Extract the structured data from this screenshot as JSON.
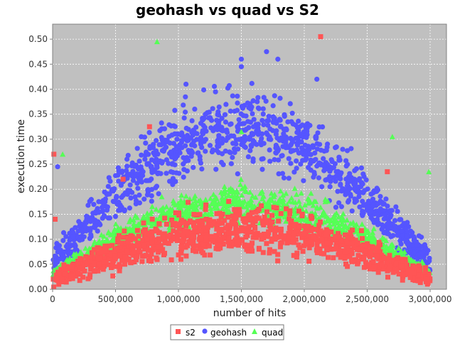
{
  "chart_data": {
    "type": "scatter",
    "title": "geohash vs quad vs S2",
    "xlabel": "number of hits",
    "ylabel": "execution time",
    "xlim": [
      0,
      3130000
    ],
    "ylim": [
      0,
      0.53
    ],
    "x_ticks": [
      0,
      500000,
      1000000,
      1500000,
      2000000,
      2500000,
      3000000
    ],
    "x_tick_labels": [
      "0",
      "500,000",
      "1,000,000",
      "1,500,000",
      "2,000,000",
      "2,500,000",
      "3,000,000"
    ],
    "y_ticks": [
      0.0,
      0.05,
      0.1,
      0.15,
      0.2,
      0.25,
      0.3,
      0.35,
      0.4,
      0.45,
      0.5
    ],
    "y_tick_labels": [
      "0.00",
      "0.05",
      "0.10",
      "0.15",
      "0.20",
      "0.25",
      "0.30",
      "0.35",
      "0.40",
      "0.45",
      "0.50"
    ],
    "grid": true,
    "plot_background": "#c0c0c0",
    "legend_position": "bottom",
    "series": [
      {
        "name": "s2",
        "marker": "square",
        "color": "#ff5555",
        "trend": {
          "base": 0.02,
          "amp": 0.1,
          "spread": 0.045
        },
        "points": [
          [
            10000,
            0.27
          ],
          [
            770000,
            0.325
          ],
          [
            2130000,
            0.505
          ],
          [
            2660000,
            0.235
          ],
          [
            1640000,
            0.16
          ],
          [
            560000,
            0.22
          ],
          [
            20000,
            0.14
          ]
        ]
      },
      {
        "name": "geohash",
        "marker": "circle",
        "color": "#5555ff",
        "trend": {
          "base": 0.05,
          "amp": 0.27,
          "spread": 0.075
        },
        "points": [
          [
            1700000,
            0.475
          ],
          [
            1500000,
            0.46
          ],
          [
            1790000,
            0.46
          ],
          [
            1500000,
            0.445
          ],
          [
            1060000,
            0.41
          ],
          [
            2100000,
            0.42
          ],
          [
            40000,
            0.245
          ]
        ]
      },
      {
        "name": "quad",
        "marker": "triangle",
        "color": "#55ff55",
        "trend": {
          "base": 0.03,
          "amp": 0.14,
          "spread": 0.035
        },
        "points": [
          [
            830000,
            0.495
          ],
          [
            80000,
            0.27
          ],
          [
            2990000,
            0.235
          ],
          [
            2700000,
            0.305
          ],
          [
            1500000,
            0.315
          ]
        ]
      }
    ]
  }
}
